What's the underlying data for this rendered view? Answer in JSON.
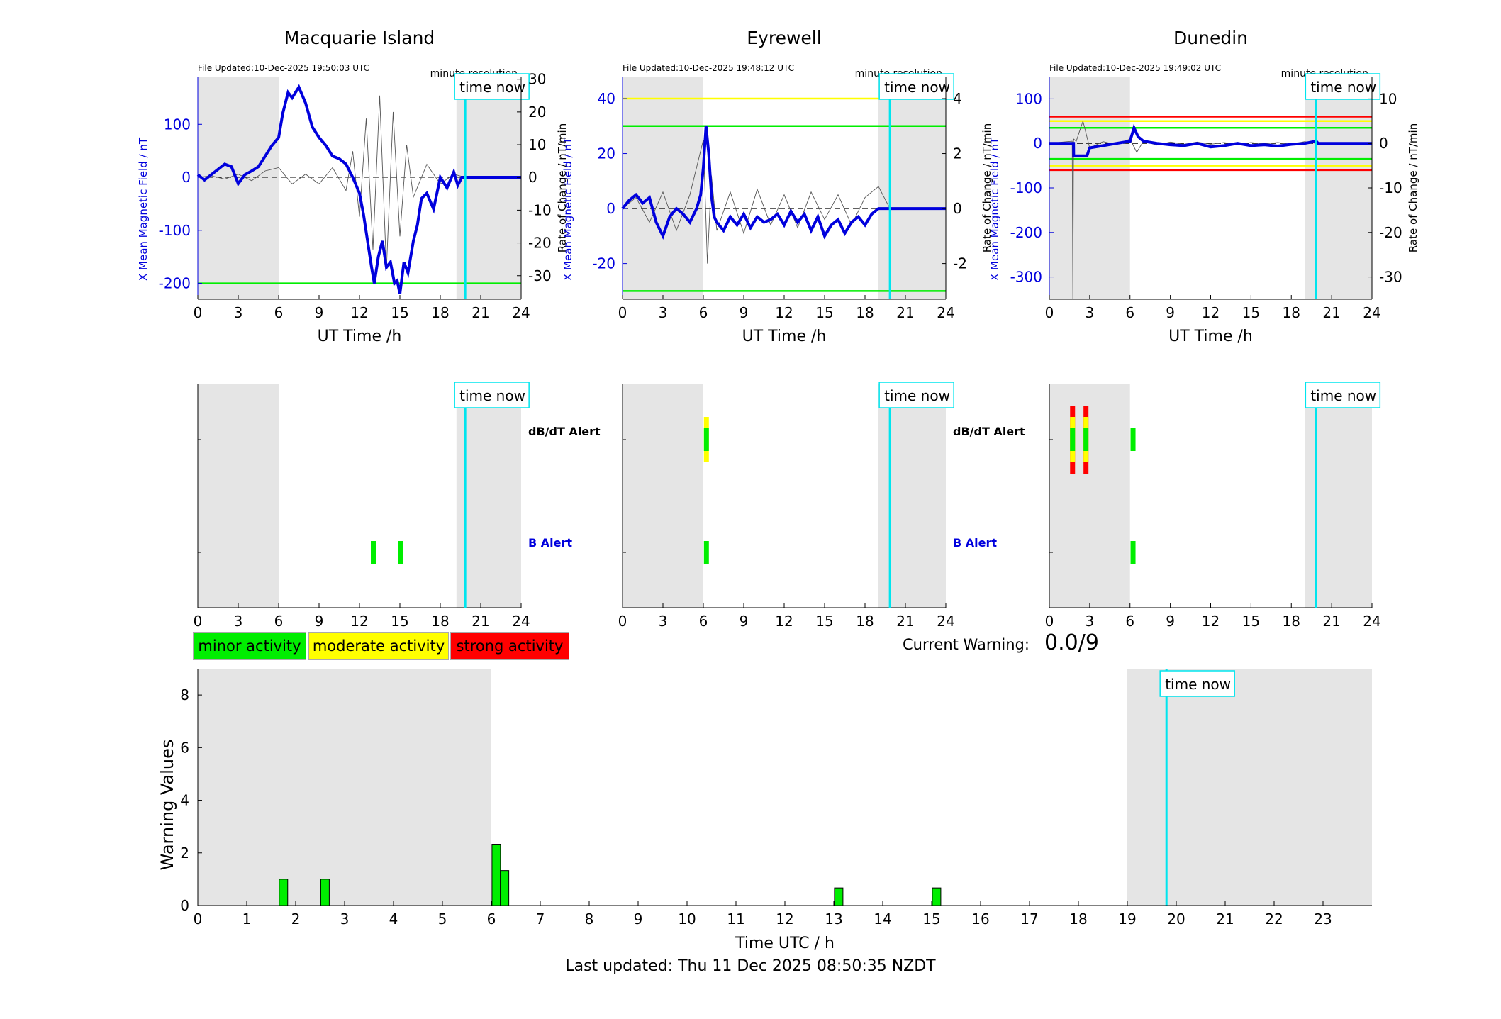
{
  "panels": [
    {
      "station": "Macquarie Island",
      "file_updated": "File Updated:10-Dec-2025 19:50:03 UTC",
      "resolution": "minute resolution",
      "ylabel_left": "X Mean Magnetic Field / nT",
      "ylabel_right": "Rate of Change / nT/min",
      "xlabel": "UT Time /h",
      "time_now_label": "time now",
      "dbdt_alert_label": "dB/dT Alert",
      "b_alert_label": "B Alert"
    },
    {
      "station": "Eyrewell",
      "file_updated": "File Updated:10-Dec-2025 19:48:12 UTC",
      "resolution": "minute resolution",
      "ylabel_left": "X Mean Magnetic Field / nT",
      "ylabel_right": "Rate of Change / nT/min",
      "xlabel": "UT Time /h",
      "time_now_label": "time now",
      "dbdt_alert_label": "dB/dT Alert",
      "b_alert_label": "B Alert"
    },
    {
      "station": "Dunedin",
      "file_updated": "File Updated:10-Dec-2025 19:49:02 UTC",
      "resolution": "minute resolution",
      "ylabel_left": "X Mean Magnetic Field / nT",
      "ylabel_right": "Rate of Change / nT/min",
      "xlabel": "UT Time /h",
      "time_now_label": "time now",
      "dbdt_alert_label": "",
      "b_alert_label": ""
    }
  ],
  "legend": {
    "minor": "minor activity",
    "moderate": "moderate activity",
    "strong": "strong activity"
  },
  "current_warning": {
    "label": "Current Warning:",
    "value": "0.0/9"
  },
  "bottom": {
    "ylabel": "Warning Values",
    "xlabel": "Time UTC / h",
    "time_now_label": "time now"
  },
  "footer": "Last updated: Thu 11 Dec 2025 08:50:35 NZDT",
  "colors": {
    "minor": "#00ee00",
    "moderate": "#ffff00",
    "strong": "#ff0000",
    "field": "#0000dd",
    "now": "#00e5ee",
    "night": "#e5e5e5"
  },
  "chart_data": [
    {
      "type": "line",
      "title": "Macquarie Island",
      "xlabel": "UT Time /h",
      "ylabel": "X Mean Magnetic Field / nT",
      "y2label": "Rate of Change / nT/min",
      "xlim": [
        0,
        24
      ],
      "ylim": [
        -230,
        190
      ],
      "y2lim": [
        -37.2,
        30.8
      ],
      "xticks": [
        0,
        3,
        6,
        9,
        12,
        15,
        18,
        21,
        24
      ],
      "yticks": [
        -200,
        -100,
        0,
        100
      ],
      "y2ticks": [
        -30,
        -20,
        -10,
        0,
        10,
        20,
        30
      ],
      "night_bands": [
        [
          0,
          6
        ],
        [
          19.2,
          24
        ]
      ],
      "time_now": 19.85,
      "threshold_lines": [
        {
          "value": -200,
          "color": "green"
        }
      ],
      "series": [
        {
          "axis": "left",
          "x": [
            0,
            0.5,
            1,
            1.5,
            2,
            2.5,
            3,
            3.5,
            4,
            4.5,
            5,
            5.5,
            6,
            6.3,
            6.7,
            7,
            7.5,
            8,
            8.5,
            9,
            9.5,
            10,
            10.5,
            11,
            11.5,
            12,
            12.3,
            12.6,
            12.9,
            13.1,
            13.4,
            13.7,
            14,
            14.3,
            14.6,
            14.8,
            15,
            15.3,
            15.6,
            16,
            16.3,
            16.6,
            17,
            17.5,
            18,
            18.5,
            19,
            19.3,
            19.6,
            19.85,
            20,
            24
          ],
          "y": [
            5,
            -5,
            5,
            15,
            25,
            20,
            -12,
            5,
            12,
            20,
            40,
            60,
            75,
            120,
            160,
            150,
            170,
            140,
            95,
            75,
            60,
            40,
            35,
            25,
            0,
            -30,
            -70,
            -120,
            -170,
            -200,
            -150,
            -120,
            -170,
            -160,
            -200,
            -195,
            -220,
            -160,
            -180,
            -120,
            -90,
            -40,
            -30,
            -60,
            0,
            -20,
            10,
            -15,
            0,
            0,
            0,
            0
          ]
        },
        {
          "axis": "right",
          "name": "",
          "x": [
            0,
            1,
            2,
            3,
            4,
            5,
            6,
            7,
            8,
            9,
            10,
            11,
            11.5,
            12,
            12.5,
            13,
            13.5,
            14,
            14.5,
            15,
            15.5,
            16,
            17,
            18,
            19,
            19.85
          ],
          "y": [
            0,
            0.5,
            -0.5,
            1,
            -1,
            2,
            3,
            -2,
            1,
            -2,
            3,
            -4,
            8,
            -12,
            18,
            -22,
            25,
            -28,
            20,
            -18,
            10,
            -6,
            4,
            -2,
            1,
            0
          ]
        }
      ],
      "alerts": {
        "dbdt": [],
        "b": [
          {
            "x": 13.0,
            "level": "minor"
          },
          {
            "x": 15.0,
            "level": "minor"
          }
        ]
      }
    },
    {
      "type": "line",
      "title": "Eyrewell",
      "xlabel": "UT Time /h",
      "ylabel": "X Mean Magnetic Field / nT",
      "y2label": "Rate of Change / nT/min",
      "xlim": [
        0,
        24
      ],
      "ylim": [
        -33,
        48
      ],
      "y2lim": [
        -3.3,
        4.8
      ],
      "xticks": [
        0,
        3,
        6,
        9,
        12,
        15,
        18,
        21,
        24
      ],
      "yticks": [
        -20,
        0,
        20,
        40
      ],
      "y2ticks": [
        -2,
        0,
        2,
        4
      ],
      "night_bands": [
        [
          0,
          6
        ],
        [
          19,
          24
        ]
      ],
      "time_now": 19.85,
      "threshold_lines": [
        {
          "value": 40,
          "color": "yellow"
        },
        {
          "value": 30,
          "color": "green"
        },
        {
          "value": -30,
          "color": "green"
        }
      ],
      "series": [
        {
          "axis": "left",
          "x": [
            0,
            0.5,
            1,
            1.5,
            2,
            2.5,
            3,
            3.5,
            4,
            4.5,
            5,
            5.5,
            5.8,
            6,
            6.2,
            6.4,
            6.6,
            6.8,
            7,
            7.5,
            8,
            8.5,
            9,
            9.5,
            10,
            10.5,
            11,
            11.5,
            12,
            12.5,
            13,
            13.5,
            14,
            14.5,
            15,
            15.5,
            16,
            16.5,
            17,
            17.5,
            18,
            18.5,
            19,
            19.85,
            20,
            24
          ],
          "y": [
            0,
            3,
            5,
            2,
            4,
            -5,
            -10,
            -3,
            0,
            -2,
            -5,
            0,
            5,
            15,
            30,
            20,
            5,
            -3,
            -5,
            -8,
            -3,
            -6,
            -2,
            -7,
            -3,
            -5,
            -4,
            -2,
            -6,
            -1,
            -5,
            -2,
            -8,
            -3,
            -10,
            -6,
            -4,
            -9,
            -5,
            -3,
            -6,
            -2,
            0,
            0,
            0,
            0
          ]
        },
        {
          "axis": "right",
          "name": "",
          "x": [
            0,
            1,
            2,
            3,
            4,
            5,
            5.5,
            6,
            6.3,
            6.6,
            7,
            8,
            9,
            10,
            11,
            12,
            13,
            14,
            15,
            16,
            17,
            18,
            19,
            19.85
          ],
          "y": [
            0,
            0.4,
            -0.5,
            0.6,
            -0.8,
            0.5,
            1.5,
            2.5,
            -2,
            1.2,
            -0.8,
            0.6,
            -0.9,
            0.7,
            -0.6,
            0.5,
            -0.7,
            0.6,
            -0.4,
            0.5,
            -0.6,
            0.4,
            0.8,
            0
          ]
        }
      ],
      "alerts": {
        "dbdt": [
          {
            "x": 6.2,
            "level": "moderate"
          }
        ],
        "b": [
          {
            "x": 6.2,
            "level": "minor"
          }
        ]
      }
    },
    {
      "type": "line",
      "title": "Dunedin",
      "xlabel": "UT Time /h",
      "ylabel": "X Mean Magnetic Field / nT",
      "y2label": "Rate of Change / nT/min",
      "xlim": [
        0,
        24
      ],
      "ylim": [
        -350,
        150
      ],
      "y2lim": [
        -35,
        15
      ],
      "xticks": [
        0,
        3,
        6,
        9,
        12,
        15,
        18,
        21,
        24
      ],
      "yticks": [
        -300,
        -200,
        -100,
        0,
        100
      ],
      "y2ticks": [
        -30,
        -20,
        -10,
        0,
        10
      ],
      "night_bands": [
        [
          0,
          6
        ],
        [
          19,
          24
        ]
      ],
      "time_now": 19.85,
      "threshold_lines": [
        {
          "value": 60,
          "color": "red"
        },
        {
          "value": 50,
          "color": "yellow"
        },
        {
          "value": 35,
          "color": "green"
        },
        {
          "value": -35,
          "color": "green"
        },
        {
          "value": -50,
          "color": "yellow"
        },
        {
          "value": -60,
          "color": "red"
        }
      ],
      "series": [
        {
          "axis": "left",
          "x": [
            0,
            1.5,
            1.8,
            1.81,
            2.8,
            3,
            4,
            5,
            6,
            6.3,
            6.6,
            7,
            8,
            9,
            10,
            11,
            12,
            13,
            14,
            15,
            16,
            17,
            18,
            19,
            19.85,
            20,
            24
          ],
          "y": [
            0,
            0,
            0,
            -28,
            -28,
            -10,
            -5,
            0,
            5,
            35,
            15,
            5,
            0,
            -3,
            -5,
            0,
            -8,
            -5,
            0,
            -5,
            -3,
            -6,
            -2,
            0,
            5,
            0,
            0
          ]
        },
        {
          "axis": "right",
          "name": "",
          "x": [
            0,
            1,
            1.7,
            1.75,
            1.8,
            2,
            2.5,
            3,
            4,
            5,
            6,
            6.5,
            7,
            8,
            9,
            10,
            11,
            12,
            13,
            14,
            15,
            16,
            17,
            18,
            19,
            19.85
          ],
          "y": [
            0,
            0.3,
            0.5,
            -35,
            1,
            0.5,
            5,
            -1,
            0.4,
            -0.3,
            1,
            -2,
            0.5,
            -0.4,
            0.3,
            -0.2,
            0.3,
            -0.2,
            0.2,
            -0.3,
            0.2,
            -0.1,
            0.2,
            -0.2,
            0.4,
            0
          ]
        }
      ],
      "alerts": {
        "dbdt": [
          {
            "x": 1.7,
            "level": "strong"
          },
          {
            "x": 2.7,
            "level": "strong"
          },
          {
            "x": 6.2,
            "level": "minor"
          }
        ],
        "b": [
          {
            "x": 6.2,
            "level": "minor"
          }
        ]
      }
    },
    {
      "type": "bar",
      "title": "",
      "xlabel": "Time UTC / h",
      "ylabel": "Warning Values",
      "xlim": [
        0,
        24
      ],
      "ylim": [
        0,
        9
      ],
      "xticks": [
        0,
        1,
        2,
        3,
        4,
        5,
        6,
        7,
        8,
        9,
        10,
        11,
        12,
        13,
        14,
        15,
        16,
        17,
        18,
        19,
        20,
        21,
        22,
        23
      ],
      "yticks": [
        0,
        2,
        4,
        6,
        8
      ],
      "night_bands": [
        [
          0,
          6
        ],
        [
          19,
          24
        ]
      ],
      "time_now": 19.8,
      "x": [
        1.75,
        2.6,
        6.1,
        6.27,
        13.1,
        15.1
      ],
      "values": [
        1.0,
        1.0,
        2.33,
        1.33,
        0.67,
        0.67
      ],
      "levels": [
        "minor",
        "minor",
        "minor",
        "minor",
        "minor",
        "minor"
      ]
    }
  ]
}
